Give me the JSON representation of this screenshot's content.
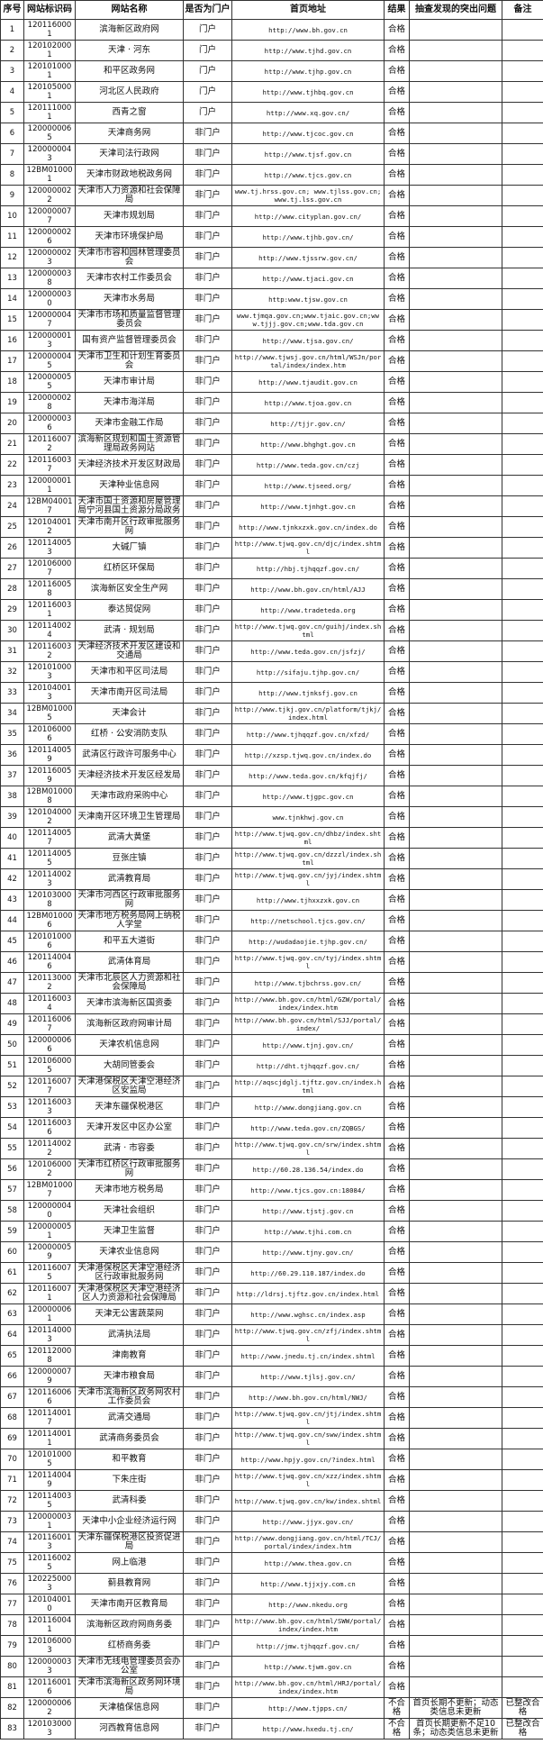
{
  "headers": [
    "序号",
    "网站标识码",
    "网站名称",
    "是否为门户",
    "首页地址",
    "结果",
    "抽查发现的突出问题",
    "备注"
  ],
  "rows": [
    [
      "1",
      "1201160001",
      "滨海新区政府网",
      "门户",
      "http://www.bh.gov.cn",
      "合格",
      "",
      ""
    ],
    [
      "2",
      "1201020001",
      "天津 · 河东",
      "门户",
      "http://www.tjhd.gov.cn",
      "合格",
      "",
      ""
    ],
    [
      "3",
      "1201010001",
      "和平区政务网",
      "门户",
      "http://www.tjhp.gov.cn",
      "合格",
      "",
      ""
    ],
    [
      "4",
      "1201050001",
      "河北区人民政府",
      "门户",
      "http://www.tjhbq.gov.cn",
      "合格",
      "",
      ""
    ],
    [
      "5",
      "1201110001",
      "西青之窗",
      "门户",
      "http://www.xq.gov.cn/",
      "合格",
      "",
      ""
    ],
    [
      "6",
      "1200000065",
      "天津商务网",
      "非门户",
      "http://www.tjcoc.gov.cn",
      "合格",
      "",
      ""
    ],
    [
      "7",
      "1200000043",
      "天津司法行政网",
      "非门户",
      "http://www.tjsf.gov.cn",
      "合格",
      "",
      ""
    ],
    [
      "8",
      "12BM010001",
      "天津市财政地税政务网",
      "非门户",
      "http://www.tjcs.gov.cn",
      "合格",
      "",
      ""
    ],
    [
      "9",
      "1200000022",
      "天津市人力资源和社会保障局",
      "非门户",
      "www.tj.hrss.gov.cn; www.tjlss.gov.cn; www.tj.lss.gov.cn",
      "合格",
      "",
      ""
    ],
    [
      "10",
      "1200000077",
      "天津市规划局",
      "非门户",
      "http://www.cityplan.gov.cn/",
      "合格",
      "",
      ""
    ],
    [
      "11",
      "1200000026",
      "天津市环境保护局",
      "非门户",
      "http://www.tjhb.gov.cn/",
      "合格",
      "",
      ""
    ],
    [
      "12",
      "1200000023",
      "天津市市容和园林管理委员会",
      "非门户",
      "http://www.tjssrw.gov.cn/",
      "合格",
      "",
      ""
    ],
    [
      "13",
      "1200000038",
      "天津市农村工作委员会",
      "非门户",
      "http://www.tjaci.gov.cn",
      "合格",
      "",
      ""
    ],
    [
      "14",
      "1200000030",
      "天津市水务局",
      "非门户",
      "http:www.tjsw.gov.cn",
      "合格",
      "",
      ""
    ],
    [
      "15",
      "1200000047",
      "天津市市场和质量监督管理委员会",
      "非门户",
      "www.tjmqa.gov.cn;www.tjaic.gov.cn;www.tjjj.gov.cn;www.tda.gov.cn",
      "合格",
      "",
      ""
    ],
    [
      "16",
      "1200000013",
      "国有资产监督管理委员会",
      "非门户",
      "http://www.tjsa.gov.cn/",
      "合格",
      "",
      ""
    ],
    [
      "17",
      "1200000045",
      "天津市卫生和计划生育委员会",
      "非门户",
      "http://www.tjwsj.gov.cn/html/WSJn/portal/index/index.htm",
      "合格",
      "",
      ""
    ],
    [
      "18",
      "1200000055",
      "天津市审计局",
      "非门户",
      "http://www.tjaudit.gov.cn",
      "合格",
      "",
      ""
    ],
    [
      "19",
      "1200000028",
      "天津市海洋局",
      "非门户",
      "http://www.tjoa.gov.cn",
      "合格",
      "",
      ""
    ],
    [
      "20",
      "1200000036",
      "天津市金融工作局",
      "非门户",
      "http://tjjr.gov.cn/",
      "合格",
      "",
      ""
    ],
    [
      "21",
      "1201160072",
      "滨海新区规划和国土资源管理局政务网站",
      "非门户",
      "http://www.bhghgt.gov.cn",
      "合格",
      "",
      ""
    ],
    [
      "22",
      "1201160037",
      "天津经济技术开发区财政局",
      "非门户",
      "http://www.teda.gov.cn/czj",
      "合格",
      "",
      ""
    ],
    [
      "23",
      "1200000011",
      "天津种业信息网",
      "非门户",
      "http://www.tjseed.org/",
      "合格",
      "",
      ""
    ],
    [
      "24",
      "12BM040017",
      "天津市国土资源和房屋管理局宁河县国土资源分局政务",
      "非门户",
      "http://www.tjnhgt.gov.cn",
      "合格",
      "",
      ""
    ],
    [
      "25",
      "1201040012",
      "天津市南开区行政审批服务网",
      "非门户",
      "http://www.tjnkxzxk.gov.cn/index.do",
      "合格",
      "",
      ""
    ],
    [
      "26",
      "1201140053",
      "大碱厂镇",
      "非门户",
      "http://www.tjwq.gov.cn/djc/index.shtml",
      "合格",
      "",
      ""
    ],
    [
      "27",
      "1201060007",
      "红桥区环保局",
      "非门户",
      "http://hbj.tjhqqzf.gov.cn/",
      "合格",
      "",
      ""
    ],
    [
      "28",
      "1201160058",
      "滨海新区安全生产网",
      "非门户",
      "http://www.bh.gov.cn/html/AJJ",
      "合格",
      "",
      ""
    ],
    [
      "29",
      "1201160031",
      "泰达贸促网",
      "非门户",
      "http://www.tradeteda.org",
      "合格",
      "",
      ""
    ],
    [
      "30",
      "1201140024",
      "武清 · 规划局",
      "非门户",
      "http://www.tjwq.gov.cn/guihj/index.shtml",
      "合格",
      "",
      ""
    ],
    [
      "31",
      "1201160032",
      "天津经济技术开发区建设和交通局",
      "非门户",
      "http://www.teda.gov.cn/jsfzj/",
      "合格",
      "",
      ""
    ],
    [
      "32",
      "1201010003",
      "天津市和平区司法局",
      "非门户",
      "http://sifaju.tjhp.gov.cn/",
      "合格",
      "",
      ""
    ],
    [
      "33",
      "1201040013",
      "天津市南开区司法局",
      "非门户",
      "http://www.tjnksfj.gov.cn",
      "合格",
      "",
      ""
    ],
    [
      "34",
      "12BM010005",
      "天津会计",
      "非门户",
      "http://www.tjkj.gov.cn/platform/tjkj/index.html",
      "合格",
      "",
      ""
    ],
    [
      "35",
      "1201060006",
      "红桥 · 公安消防支队",
      "非门户",
      "http://www.tjhqqzf.gov.cn/xfzd/",
      "合格",
      "",
      ""
    ],
    [
      "36",
      "1201140059",
      "武清区行政许可服务中心",
      "非门户",
      "http://xzsp.tjwq.gov.cn/index.do",
      "合格",
      "",
      ""
    ],
    [
      "37",
      "1201160059",
      "天津经济技术开发区经发局",
      "非门户",
      "http://www.teda.gov.cn/kfqjfj/",
      "合格",
      "",
      ""
    ],
    [
      "38",
      "12BM010008",
      "天津市政府采购中心",
      "非门户",
      "http://www.tjgpc.gov.cn",
      "合格",
      "",
      ""
    ],
    [
      "39",
      "1201040002",
      "天津南开区环境卫生管理局",
      "非门户",
      "www.tjnkhwj.gov.cn",
      "合格",
      "",
      ""
    ],
    [
      "40",
      "1201140057",
      "武清大黄堡",
      "非门户",
      "http://www.tjwq.gov.cn/dhbz/index.shtml",
      "合格",
      "",
      ""
    ],
    [
      "41",
      "1201140055",
      "豆张庄镇",
      "非门户",
      "http://www.tjwq.gov.cn/dzzzl/index.shtml",
      "合格",
      "",
      ""
    ],
    [
      "42",
      "1201140023",
      "武清教育局",
      "非门户",
      "http://www.tjwq.gov.cn/jyj/index.shtml",
      "合格",
      "",
      ""
    ],
    [
      "43",
      "1201030008",
      "天津市河西区行政审批服务网",
      "非门户",
      "http://www.tjhxxzxk.gov.cn",
      "合格",
      "",
      ""
    ],
    [
      "44",
      "12BM010006",
      "天津市地方税务局网上纳税人学堂",
      "非门户",
      "http://netschool.tjcs.gov.cn/",
      "合格",
      "",
      ""
    ],
    [
      "45",
      "1201010006",
      "和平五大道街",
      "非门户",
      "http://wudadaojie.tjhp.gov.cn/",
      "合格",
      "",
      ""
    ],
    [
      "46",
      "1201140046",
      "武清体育局",
      "非门户",
      "http://www.tjwq.gov.cn/tyj/index.shtml",
      "合格",
      "",
      ""
    ],
    [
      "47",
      "1201130002",
      "天津市北辰区人力资源和社会保障局",
      "非门户",
      "http://www.tjbchrss.gov.cn/",
      "合格",
      "",
      ""
    ],
    [
      "48",
      "1201160034",
      "天津市滨海新区国资委",
      "非门户",
      "http://www.bh.gov.cn/html/GZW/portal/index/index.htm",
      "合格",
      "",
      ""
    ],
    [
      "49",
      "1201160067",
      "滨海新区政府网审计局",
      "非门户",
      "http://www.bh.gov.cn/html/SJJ/portal/index/",
      "合格",
      "",
      ""
    ],
    [
      "50",
      "1200000066",
      "天津农机信息网",
      "非门户",
      "http://www.tjnj.gov.cn/",
      "合格",
      "",
      ""
    ],
    [
      "51",
      "1201060005",
      "大胡同管委会",
      "非门户",
      "http://dht.tjhqqzf.gov.cn/",
      "合格",
      "",
      ""
    ],
    [
      "52",
      "1201160077",
      "天津港保税区天津空港经济区安监局",
      "非门户",
      "http://aqscjdglj.tjftz.gov.cn/index.html",
      "合格",
      "",
      ""
    ],
    [
      "53",
      "1201160033",
      "天津东疆保税港区",
      "非门户",
      "http://www.dongjiang.gov.cn",
      "合格",
      "",
      ""
    ],
    [
      "54",
      "1201160036",
      "天津开发区中区办公室",
      "非门户",
      "http://www.teda.gov.cn/ZQBGS/",
      "合格",
      "",
      ""
    ],
    [
      "55",
      "1201140022",
      "武清 · 市容委",
      "非门户",
      "http://www.tjwq.gov.cn/srw/index.shtml",
      "合格",
      "",
      ""
    ],
    [
      "56",
      "1201060002",
      "天津市红桥区行政审批服务网",
      "非门户",
      "http://60.28.136.54/index.do",
      "合格",
      "",
      ""
    ],
    [
      "57",
      "12BM010007",
      "天津市地方税务局",
      "非门户",
      "http://www.tjcs.gov.cn:18084/",
      "合格",
      "",
      ""
    ],
    [
      "58",
      "1200000040",
      "天津社会组织",
      "非门户",
      "http://www.tjstj.gov.cn",
      "合格",
      "",
      ""
    ],
    [
      "59",
      "1200000051",
      "天津卫生监督",
      "非门户",
      "http://www.tjhi.com.cn",
      "合格",
      "",
      ""
    ],
    [
      "60",
      "1200000059",
      "天津农业信息网",
      "非门户",
      "http://www.tjny.gov.cn/",
      "合格",
      "",
      ""
    ],
    [
      "61",
      "1201160075",
      "天津港保税区天津空港经济区行政审批服务网",
      "非门户",
      "http://60.29.110.187/index.do",
      "合格",
      "",
      ""
    ],
    [
      "62",
      "1201160071",
      "天津港保税区天津空港经济区人力资源和社会保障局",
      "非门户",
      "http://ldrsj.tjftz.gov.cn/index.html",
      "合格",
      "",
      ""
    ],
    [
      "63",
      "1200000061",
      "天津无公害蔬菜网",
      "非门户",
      "http://www.wghsc.cn/index.asp",
      "合格",
      "",
      ""
    ],
    [
      "64",
      "1201140003",
      "武清执法局",
      "非门户",
      "http://www.tjwq.gov.cn/zfj/index.shtml",
      "合格",
      "",
      ""
    ],
    [
      "65",
      "1201120008",
      "津南教育",
      "非门户",
      "http://www.jnedu.tj.cn/index.shtml",
      "合格",
      "",
      ""
    ],
    [
      "66",
      "1200000079",
      "天津市粮食局",
      "非门户",
      "http://www.tjlsj.gov.cn/",
      "合格",
      "",
      ""
    ],
    [
      "67",
      "1201160066",
      "天津市滨海新区政务网农村工作委员会",
      "非门户",
      "http://www.bh.gov.cn/html/NWJ/",
      "合格",
      "",
      ""
    ],
    [
      "68",
      "1201140017",
      "武清交通局",
      "非门户",
      "http://www.tjwq.gov.cn/jtj/index.shtml",
      "合格",
      "",
      ""
    ],
    [
      "69",
      "1201140011",
      "武清商务委员会",
      "非门户",
      "http://www.tjwq.gov.cn/sww/index.shtml",
      "合格",
      "",
      ""
    ],
    [
      "70",
      "1201010005",
      "和平教育",
      "非门户",
      "http://www.hpjy.gov.cn/?index.html",
      "合格",
      "",
      ""
    ],
    [
      "71",
      "1201140049",
      "下朱庄街",
      "非门户",
      "http://www.tjwq.gov.cn/xzz/index.shtml",
      "合格",
      "",
      ""
    ],
    [
      "72",
      "1201140035",
      "武清科委",
      "非门户",
      "http://www.tjwq.gov.cn/kw/index.shtml",
      "合格",
      "",
      ""
    ],
    [
      "73",
      "1200000031",
      "天津中小企业经济运行网",
      "非门户",
      "http://www.jjyx.gov.cn/",
      "合格",
      "",
      ""
    ],
    [
      "74",
      "1201160013",
      "天津东疆保税港区投资促进局",
      "非门户",
      "http://www.dongjiang.gov.cn/html/TCJ/portal/index/index.htm",
      "合格",
      "",
      ""
    ],
    [
      "75",
      "1201160025",
      "网上临港",
      "非门户",
      "http://www.thea.gov.cn",
      "合格",
      "",
      ""
    ],
    [
      "76",
      "1202250003",
      "蓟县教育网",
      "非门户",
      "http://www.tjjxjy.com.cn",
      "合格",
      "",
      ""
    ],
    [
      "77",
      "1201040010",
      "天津市南开区教育局",
      "非门户",
      "http://www.nkedu.org",
      "合格",
      "",
      ""
    ],
    [
      "78",
      "1201160041",
      "滨海新区政府网商务委",
      "非门户",
      "http://www.bh.gov.cn/html/SWW/portal/index/index.htm",
      "合格",
      "",
      ""
    ],
    [
      "79",
      "1201060003",
      "红桥商务委",
      "非门户",
      "http://jmw.tjhqqzf.gov.cn/",
      "合格",
      "",
      ""
    ],
    [
      "80",
      "1200000033",
      "天津市无线电管理委员会办公室",
      "非门户",
      "http://www.tjwm.gov.cn",
      "合格",
      "",
      ""
    ],
    [
      "81",
      "1201160016",
      "天津市滨海新区政务网环境局",
      "非门户",
      "http://www.bh.gov.cn/html/HRJ/portal/index/index.htm",
      "合格",
      "",
      ""
    ],
    [
      "82",
      "1200000062",
      "天津植保信息网",
      "非门户",
      "http://www.tjpps.cn/",
      "不合格",
      "首页长期不更新；动态类信息未更新",
      "已整改合格"
    ],
    [
      "83",
      "1201030003",
      "河西教育信息网",
      "非门户",
      "http://www.hxedu.tj.cn/",
      "不合格",
      "首页长期更新不足10条；动态类信息未更新",
      "已整改合格"
    ]
  ]
}
